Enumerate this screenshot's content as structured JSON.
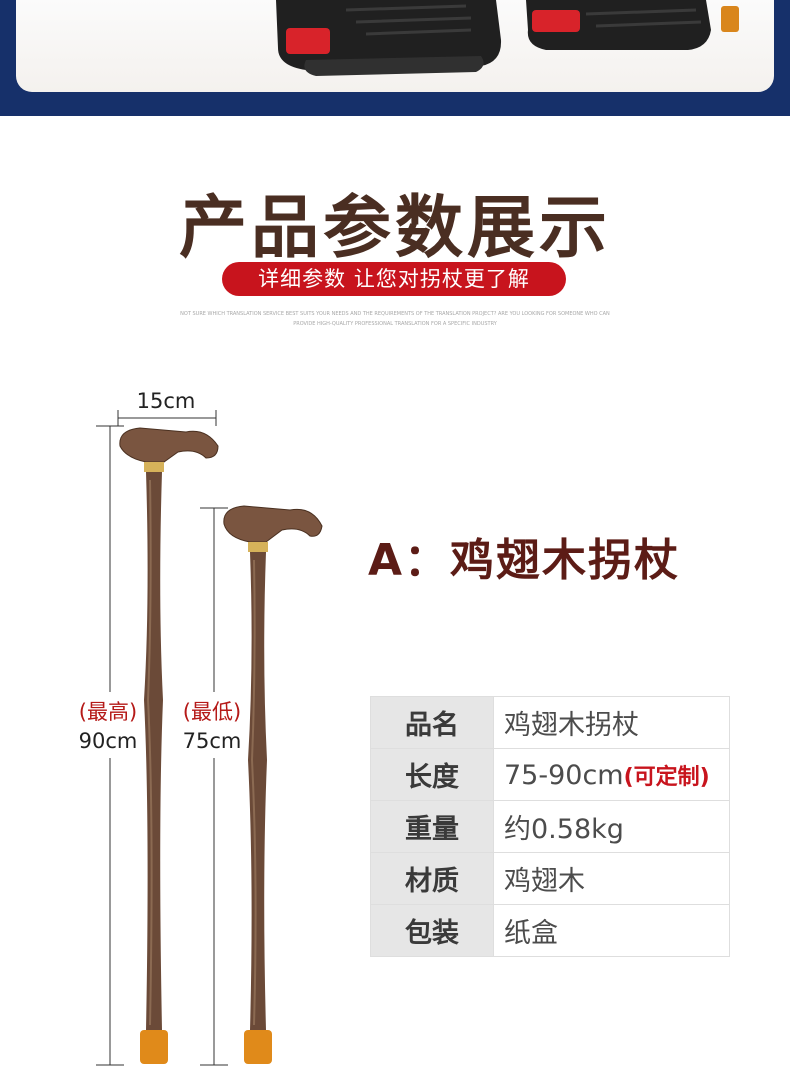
{
  "header": {
    "title": "产品参数展示",
    "subtitle": "详细参数 让您对拐杖更了解",
    "fine_print_line1": "NOT SURE WHICH TRANSLATION SERVICE BEST SUITS YOUR NEEDS AND THE REQUIREMENTS OF THE TRANSLATION PROJECT? ARE YOU LOOKING FOR SOMEONE WHO CAN",
    "fine_print_line2": "PROVIDE HIGH-QUALITY PROFESSIONAL TRANSLATION FOR A SPECIFIC INDUSTRY"
  },
  "product": {
    "heading": "A：鸡翅木拐杖"
  },
  "dimensions": {
    "handle_width": "15cm",
    "max_label": "(最高)",
    "max_value": "90cm",
    "min_label": "(最低)",
    "min_value": "75cm"
  },
  "specs": {
    "rows": [
      {
        "key": "品名",
        "value": "鸡翅木拐杖",
        "note": ""
      },
      {
        "key": "长度",
        "value": "75-90cm",
        "note": "(可定制)"
      },
      {
        "key": "重量",
        "value": "约0.58kg",
        "note": ""
      },
      {
        "key": "材质",
        "value": "鸡翅木",
        "note": ""
      },
      {
        "key": "包装",
        "value": "纸盒",
        "note": ""
      }
    ]
  },
  "colors": {
    "banner": "#16306a",
    "title": "#4a2e22",
    "accent_red": "#c8141d",
    "product_heading": "#5c1c16",
    "wood": "#6b4a38"
  }
}
